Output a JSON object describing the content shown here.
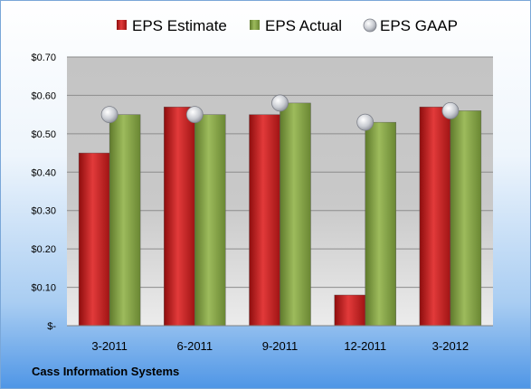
{
  "chart_data": {
    "type": "bar",
    "categories": [
      "3-2011",
      "6-2011",
      "9-2011",
      "12-2011",
      "3-2012"
    ],
    "series": [
      {
        "name": "EPS Estimate",
        "kind": "bar",
        "color": "#c81e1e",
        "values": [
          0.45,
          0.57,
          0.55,
          0.08,
          0.57
        ]
      },
      {
        "name": "EPS Actual",
        "kind": "bar",
        "color": "#86a34a",
        "values": [
          0.55,
          0.55,
          0.58,
          0.53,
          0.56
        ]
      },
      {
        "name": "EPS GAAP",
        "kind": "marker",
        "color": "#b8bcc4",
        "values": [
          0.55,
          0.55,
          0.58,
          0.53,
          0.56
        ]
      }
    ],
    "y_ticks": [
      "$-",
      "$0.10",
      "$0.20",
      "$0.30",
      "$0.40",
      "$0.50",
      "$0.60",
      "$0.70"
    ],
    "ylim": [
      0,
      0.7
    ],
    "grid": true,
    "legend_position": "top"
  },
  "footer": {
    "company": "Cass Information Systems"
  }
}
